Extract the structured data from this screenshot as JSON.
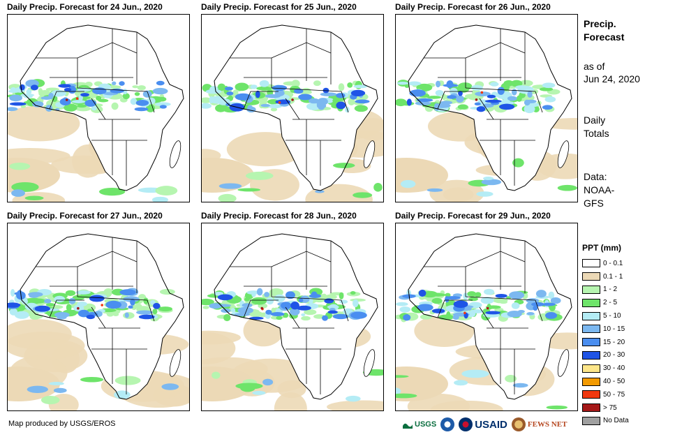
{
  "header": {
    "title": "Precip. Forecast",
    "as_of_label": "as of",
    "as_of_date": "Jun 24, 2020",
    "totals_label": "Daily Totals",
    "data_label": "Data:",
    "data_source": "NOAA-GFS"
  },
  "panels": [
    {
      "title": "Daily Precip. Forecast for 24 Jun., 2020"
    },
    {
      "title": "Daily Precip. Forecast for 25 Jun., 2020"
    },
    {
      "title": "Daily Precip. Forecast for 26 Jun., 2020"
    },
    {
      "title": "Daily Precip. Forecast for 27 Jun., 2020"
    },
    {
      "title": "Daily Precip. Forecast for 28 Jun., 2020"
    },
    {
      "title": "Daily Precip. Forecast for 29 Jun., 2020"
    }
  ],
  "legend": {
    "title": "PPT (mm)",
    "items": [
      {
        "label": "0 - 0.1",
        "color": "#ffffff"
      },
      {
        "label": "0.1 - 1",
        "color": "#ecd9b6"
      },
      {
        "label": "1 - 2",
        "color": "#b6f5b0"
      },
      {
        "label": "2 - 5",
        "color": "#6ee46a"
      },
      {
        "label": "5 - 10",
        "color": "#b4ecf5"
      },
      {
        "label": "10 - 15",
        "color": "#7cb8f0"
      },
      {
        "label": "15 - 20",
        "color": "#4a8ef0"
      },
      {
        "label": "20 - 30",
        "color": "#1f54e6"
      },
      {
        "label": "30 - 40",
        "color": "#fde68a"
      },
      {
        "label": "40 - 50",
        "color": "#f39a00"
      },
      {
        "label": "50 - 75",
        "color": "#f0380f"
      },
      {
        "label": "> 75",
        "color": "#a51818"
      },
      {
        "label": "No Data",
        "color": "#a0a0a0"
      }
    ]
  },
  "footer": {
    "credit": "Map produced by USGS/EROS",
    "logos": [
      "USGS",
      "NOAA",
      "USAID",
      "FEWS NET"
    ]
  }
}
